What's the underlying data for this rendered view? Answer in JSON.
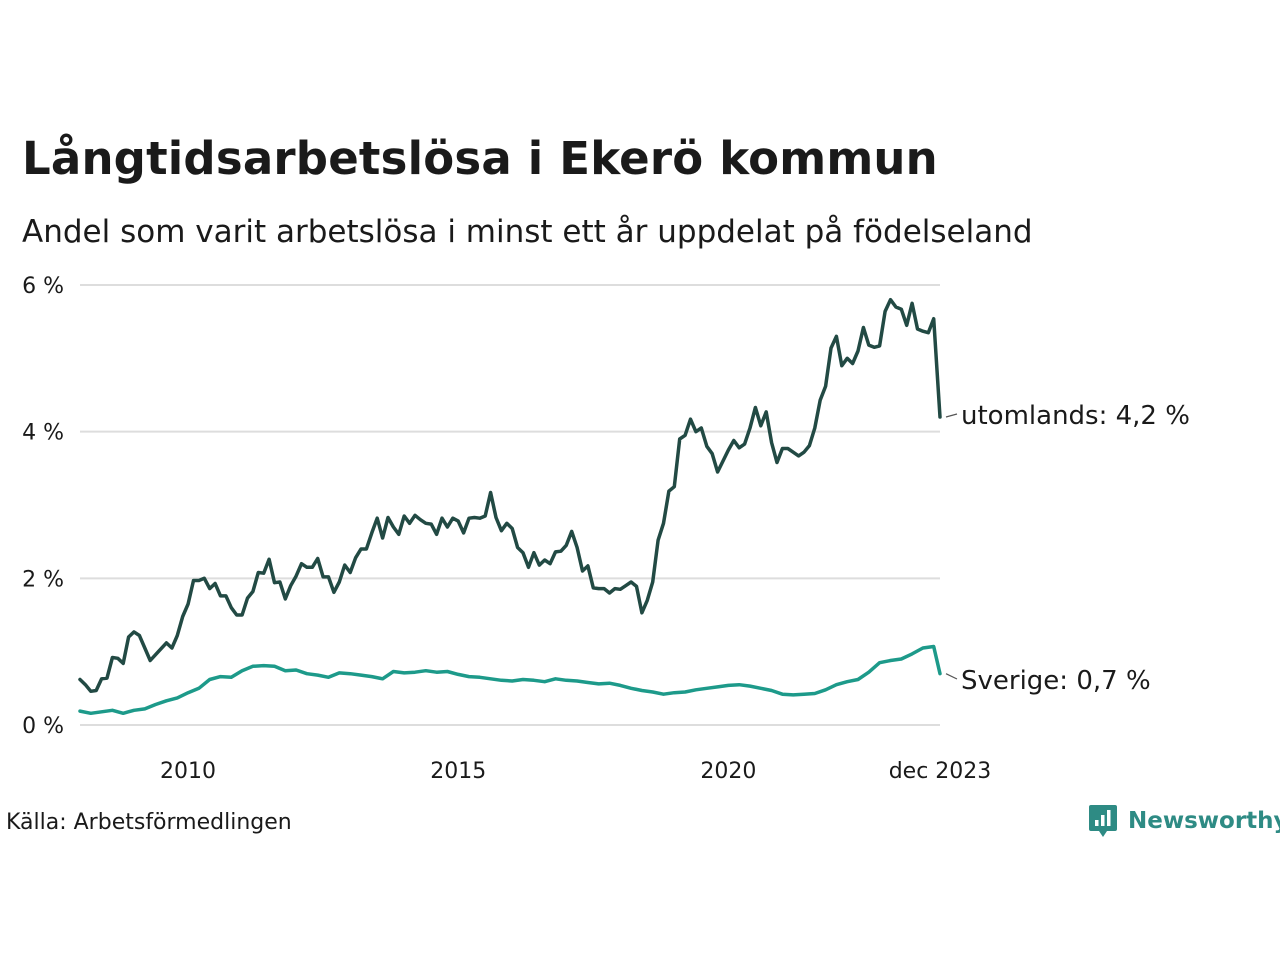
{
  "colors": {
    "utomlands": "#224a44",
    "sverige": "#1d9a8a",
    "grid": "#dddddd",
    "brand": "#2e8b84"
  },
  "brand": {
    "name": "Newsworthy",
    "icon": "bar-chart-bubble-icon"
  },
  "source": "Källa: Arbetsförmedlingen",
  "chart_data": {
    "type": "line",
    "title": "Långtidsarbetslösa i Ekerö kommun",
    "subtitle": "Andel som varit arbetslösa i minst ett år uppdelat på födelseland",
    "xlabel": "",
    "ylabel": "",
    "grid": true,
    "ylim": [
      0,
      6
    ],
    "xlim": [
      2008.0,
      2023.917
    ],
    "yticks": [
      {
        "value": 0,
        "label": "0 %"
      },
      {
        "value": 2,
        "label": "2 %"
      },
      {
        "value": 4,
        "label": "4 %"
      },
      {
        "value": 6,
        "label": "6 %"
      }
    ],
    "xticks": [
      {
        "value": 2010.0,
        "label": "2010"
      },
      {
        "value": 2015.0,
        "label": "2015"
      },
      {
        "value": 2020.0,
        "label": "2020"
      },
      {
        "value": 2023.917,
        "label": "dec 2023"
      }
    ],
    "series": [
      {
        "name": "utomlands",
        "end_label": "utomlands: 4,2 %",
        "points": [
          [
            2008.0,
            0.62
          ],
          [
            2008.1,
            0.55
          ],
          [
            2008.2,
            0.46
          ],
          [
            2008.3,
            0.47
          ],
          [
            2008.4,
            0.63
          ],
          [
            2008.5,
            0.64
          ],
          [
            2008.6,
            0.92
          ],
          [
            2008.7,
            0.91
          ],
          [
            2008.8,
            0.84
          ],
          [
            2008.9,
            1.2
          ],
          [
            2009.0,
            1.27
          ],
          [
            2009.1,
            1.22
          ],
          [
            2009.2,
            1.05
          ],
          [
            2009.3,
            0.88
          ],
          [
            2009.45,
            1.0
          ],
          [
            2009.6,
            1.12
          ],
          [
            2009.7,
            1.05
          ],
          [
            2009.8,
            1.22
          ],
          [
            2009.9,
            1.48
          ],
          [
            2010.0,
            1.65
          ],
          [
            2010.1,
            1.97
          ],
          [
            2010.2,
            1.97
          ],
          [
            2010.3,
            2.0
          ],
          [
            2010.4,
            1.86
          ],
          [
            2010.5,
            1.93
          ],
          [
            2010.6,
            1.76
          ],
          [
            2010.7,
            1.76
          ],
          [
            2010.8,
            1.6
          ],
          [
            2010.9,
            1.5
          ],
          [
            2011.0,
            1.5
          ],
          [
            2011.1,
            1.73
          ],
          [
            2011.2,
            1.82
          ],
          [
            2011.3,
            2.08
          ],
          [
            2011.4,
            2.07
          ],
          [
            2011.5,
            2.26
          ],
          [
            2011.6,
            1.94
          ],
          [
            2011.7,
            1.95
          ],
          [
            2011.8,
            1.72
          ],
          [
            2011.9,
            1.9
          ],
          [
            2012.0,
            2.03
          ],
          [
            2012.1,
            2.2
          ],
          [
            2012.2,
            2.15
          ],
          [
            2012.3,
            2.15
          ],
          [
            2012.4,
            2.27
          ],
          [
            2012.5,
            2.02
          ],
          [
            2012.6,
            2.02
          ],
          [
            2012.7,
            1.81
          ],
          [
            2012.8,
            1.95
          ],
          [
            2012.9,
            2.18
          ],
          [
            2013.0,
            2.08
          ],
          [
            2013.1,
            2.28
          ],
          [
            2013.2,
            2.4
          ],
          [
            2013.3,
            2.4
          ],
          [
            2013.4,
            2.62
          ],
          [
            2013.5,
            2.82
          ],
          [
            2013.6,
            2.55
          ],
          [
            2013.7,
            2.83
          ],
          [
            2013.8,
            2.7
          ],
          [
            2013.9,
            2.6
          ],
          [
            2014.0,
            2.85
          ],
          [
            2014.1,
            2.75
          ],
          [
            2014.2,
            2.86
          ],
          [
            2014.3,
            2.8
          ],
          [
            2014.4,
            2.75
          ],
          [
            2014.5,
            2.74
          ],
          [
            2014.6,
            2.6
          ],
          [
            2014.7,
            2.82
          ],
          [
            2014.8,
            2.7
          ],
          [
            2014.9,
            2.82
          ],
          [
            2015.0,
            2.78
          ],
          [
            2015.1,
            2.62
          ],
          [
            2015.2,
            2.82
          ],
          [
            2015.3,
            2.83
          ],
          [
            2015.4,
            2.82
          ],
          [
            2015.5,
            2.85
          ],
          [
            2015.6,
            3.17
          ],
          [
            2015.7,
            2.83
          ],
          [
            2015.8,
            2.65
          ],
          [
            2015.9,
            2.75
          ],
          [
            2016.0,
            2.68
          ],
          [
            2016.1,
            2.42
          ],
          [
            2016.2,
            2.35
          ],
          [
            2016.3,
            2.15
          ],
          [
            2016.4,
            2.35
          ],
          [
            2016.5,
            2.18
          ],
          [
            2016.6,
            2.25
          ],
          [
            2016.7,
            2.2
          ],
          [
            2016.8,
            2.36
          ],
          [
            2016.9,
            2.37
          ],
          [
            2017.0,
            2.45
          ],
          [
            2017.1,
            2.64
          ],
          [
            2017.2,
            2.42
          ],
          [
            2017.3,
            2.1
          ],
          [
            2017.4,
            2.17
          ],
          [
            2017.5,
            1.87
          ],
          [
            2017.6,
            1.86
          ],
          [
            2017.7,
            1.86
          ],
          [
            2017.8,
            1.8
          ],
          [
            2017.9,
            1.86
          ],
          [
            2018.0,
            1.85
          ],
          [
            2018.1,
            1.9
          ],
          [
            2018.2,
            1.95
          ],
          [
            2018.3,
            1.89
          ],
          [
            2018.4,
            1.53
          ],
          [
            2018.5,
            1.7
          ],
          [
            2018.6,
            1.95
          ],
          [
            2018.7,
            2.52
          ],
          [
            2018.8,
            2.75
          ],
          [
            2018.9,
            3.19
          ],
          [
            2019.0,
            3.25
          ],
          [
            2019.1,
            3.9
          ],
          [
            2019.2,
            3.95
          ],
          [
            2019.3,
            4.17
          ],
          [
            2019.4,
            4.0
          ],
          [
            2019.5,
            4.05
          ],
          [
            2019.6,
            3.8
          ],
          [
            2019.7,
            3.7
          ],
          [
            2019.8,
            3.45
          ],
          [
            2019.9,
            3.6
          ],
          [
            2020.0,
            3.75
          ],
          [
            2020.1,
            3.88
          ],
          [
            2020.2,
            3.78
          ],
          [
            2020.3,
            3.83
          ],
          [
            2020.4,
            4.05
          ],
          [
            2020.5,
            4.33
          ],
          [
            2020.6,
            4.08
          ],
          [
            2020.7,
            4.27
          ],
          [
            2020.8,
            3.85
          ],
          [
            2020.9,
            3.58
          ],
          [
            2021.0,
            3.77
          ],
          [
            2021.1,
            3.77
          ],
          [
            2021.2,
            3.72
          ],
          [
            2021.3,
            3.67
          ],
          [
            2021.4,
            3.72
          ],
          [
            2021.5,
            3.81
          ],
          [
            2021.6,
            4.05
          ],
          [
            2021.7,
            4.43
          ],
          [
            2021.8,
            4.62
          ],
          [
            2021.9,
            5.14
          ],
          [
            2022.0,
            5.3
          ],
          [
            2022.1,
            4.9
          ],
          [
            2022.2,
            5.0
          ],
          [
            2022.3,
            4.93
          ],
          [
            2022.4,
            5.1
          ],
          [
            2022.5,
            5.42
          ],
          [
            2022.6,
            5.18
          ],
          [
            2022.7,
            5.15
          ],
          [
            2022.8,
            5.17
          ],
          [
            2022.9,
            5.64
          ],
          [
            2023.0,
            5.8
          ],
          [
            2023.1,
            5.7
          ],
          [
            2023.2,
            5.67
          ],
          [
            2023.3,
            5.45
          ],
          [
            2023.4,
            5.75
          ],
          [
            2023.5,
            5.4
          ],
          [
            2023.6,
            5.37
          ],
          [
            2023.7,
            5.35
          ],
          [
            2023.8,
            5.54
          ],
          [
            2023.917,
            4.2
          ]
        ]
      },
      {
        "name": "Sverige",
        "end_label": "Sverige: 0,7 %",
        "points": [
          [
            2008.0,
            0.19
          ],
          [
            2008.2,
            0.16
          ],
          [
            2008.4,
            0.18
          ],
          [
            2008.6,
            0.2
          ],
          [
            2008.8,
            0.16
          ],
          [
            2009.0,
            0.2
          ],
          [
            2009.2,
            0.22
          ],
          [
            2009.4,
            0.28
          ],
          [
            2009.6,
            0.33
          ],
          [
            2009.8,
            0.37
          ],
          [
            2010.0,
            0.44
          ],
          [
            2010.2,
            0.5
          ],
          [
            2010.4,
            0.62
          ],
          [
            2010.6,
            0.66
          ],
          [
            2010.8,
            0.65
          ],
          [
            2011.0,
            0.74
          ],
          [
            2011.2,
            0.8
          ],
          [
            2011.4,
            0.81
          ],
          [
            2011.6,
            0.8
          ],
          [
            2011.8,
            0.74
          ],
          [
            2012.0,
            0.75
          ],
          [
            2012.2,
            0.7
          ],
          [
            2012.4,
            0.68
          ],
          [
            2012.6,
            0.65
          ],
          [
            2012.8,
            0.71
          ],
          [
            2013.0,
            0.7
          ],
          [
            2013.2,
            0.68
          ],
          [
            2013.4,
            0.66
          ],
          [
            2013.6,
            0.63
          ],
          [
            2013.8,
            0.73
          ],
          [
            2014.0,
            0.71
          ],
          [
            2014.2,
            0.72
          ],
          [
            2014.4,
            0.74
          ],
          [
            2014.6,
            0.72
          ],
          [
            2014.8,
            0.73
          ],
          [
            2015.0,
            0.69
          ],
          [
            2015.2,
            0.66
          ],
          [
            2015.4,
            0.65
          ],
          [
            2015.6,
            0.63
          ],
          [
            2015.8,
            0.61
          ],
          [
            2016.0,
            0.6
          ],
          [
            2016.2,
            0.62
          ],
          [
            2016.4,
            0.61
          ],
          [
            2016.6,
            0.59
          ],
          [
            2016.8,
            0.63
          ],
          [
            2017.0,
            0.61
          ],
          [
            2017.2,
            0.6
          ],
          [
            2017.4,
            0.58
          ],
          [
            2017.6,
            0.56
          ],
          [
            2017.8,
            0.57
          ],
          [
            2018.0,
            0.54
          ],
          [
            2018.2,
            0.5
          ],
          [
            2018.4,
            0.47
          ],
          [
            2018.6,
            0.45
          ],
          [
            2018.8,
            0.42
          ],
          [
            2019.0,
            0.44
          ],
          [
            2019.2,
            0.45
          ],
          [
            2019.4,
            0.48
          ],
          [
            2019.6,
            0.5
          ],
          [
            2019.8,
            0.52
          ],
          [
            2020.0,
            0.54
          ],
          [
            2020.2,
            0.55
          ],
          [
            2020.4,
            0.53
          ],
          [
            2020.6,
            0.5
          ],
          [
            2020.8,
            0.47
          ],
          [
            2021.0,
            0.42
          ],
          [
            2021.2,
            0.41
          ],
          [
            2021.4,
            0.42
          ],
          [
            2021.6,
            0.43
          ],
          [
            2021.8,
            0.48
          ],
          [
            2022.0,
            0.55
          ],
          [
            2022.2,
            0.59
          ],
          [
            2022.4,
            0.62
          ],
          [
            2022.6,
            0.72
          ],
          [
            2022.8,
            0.85
          ],
          [
            2023.0,
            0.88
          ],
          [
            2023.2,
            0.9
          ],
          [
            2023.4,
            0.97
          ],
          [
            2023.6,
            1.05
          ],
          [
            2023.8,
            1.07
          ],
          [
            2023.917,
            0.7
          ]
        ]
      }
    ]
  }
}
